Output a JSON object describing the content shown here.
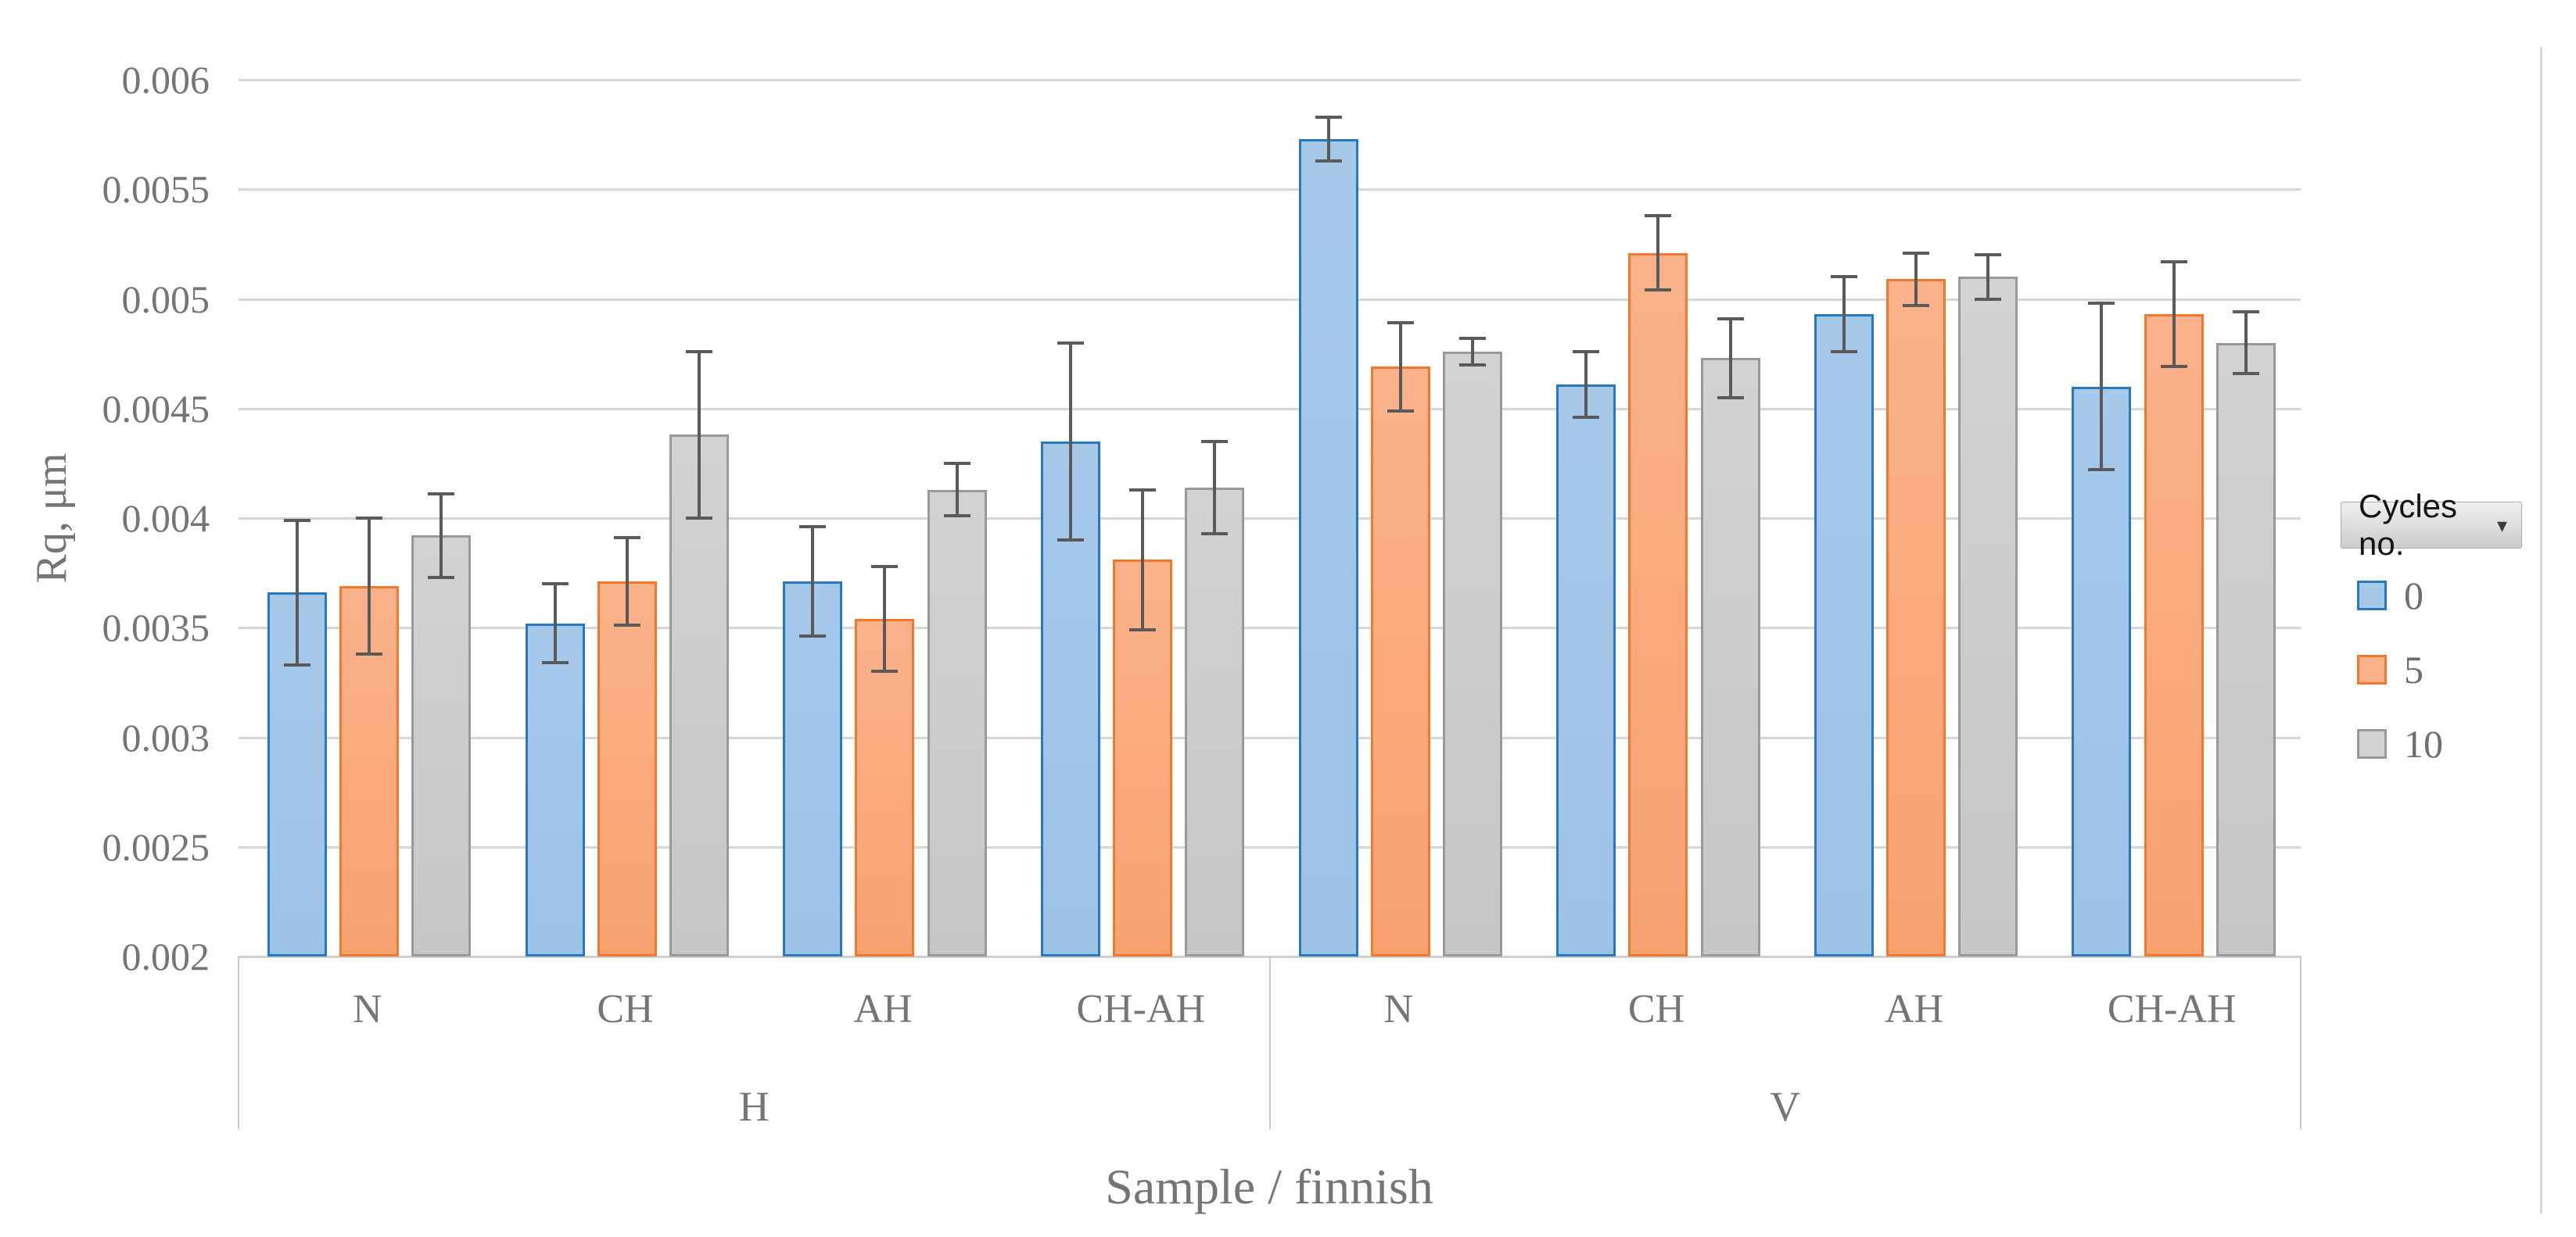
{
  "chart_data": {
    "type": "bar",
    "title": "",
    "xlabel": "Sample / finnish",
    "ylabel": "Rq, μm",
    "ylim": [
      0.002,
      0.006
    ],
    "ytick_interval": 0.0005,
    "ytick_labels": [
      "0.002",
      "0.0025",
      "0.003",
      "0.0035",
      "0.004",
      "0.0045",
      "0.005",
      "0.0055",
      "0.006"
    ],
    "grid": true,
    "legend_position": "right",
    "legend_field_button": "Cycles no.",
    "categories": [
      "N",
      "CH",
      "AH",
      "CH-AH",
      "N",
      "CH",
      "AH",
      "CH-AH"
    ],
    "category_groups": [
      {
        "label": "H",
        "span": 4
      },
      {
        "label": "V",
        "span": 4
      }
    ],
    "series": [
      {
        "name": "0",
        "fill": "#A6C9EA",
        "fill_bottom": "#9CC2E6",
        "border": "#2878C0",
        "values": [
          0.00366,
          0.00352,
          0.00371,
          0.00435,
          0.00573,
          0.00461,
          0.00493,
          0.0046
        ],
        "errors": [
          0.00033,
          0.00018,
          0.00025,
          0.00045,
          0.0001,
          0.00015,
          0.00017,
          0.00038
        ]
      },
      {
        "name": "5",
        "fill": "#FBB28B",
        "fill_bottom": "#F8A271",
        "border": "#F0792E",
        "values": [
          0.00369,
          0.00371,
          0.00354,
          0.00381,
          0.00469,
          0.00521,
          0.00509,
          0.00493
        ],
        "errors": [
          0.00031,
          0.0002,
          0.00024,
          0.00032,
          0.0002,
          0.00017,
          0.00012,
          0.00024
        ]
      },
      {
        "name": "10",
        "fill": "#D2D2D2",
        "fill_bottom": "#C6C6C6",
        "border": "#999999",
        "values": [
          0.00392,
          0.00438,
          0.00413,
          0.00414,
          0.00476,
          0.00473,
          0.0051,
          0.0048
        ],
        "errors": [
          0.00019,
          0.00038,
          0.00012,
          0.00021,
          6e-05,
          0.00018,
          0.0001,
          0.00014
        ]
      }
    ],
    "error_bar_color": "#5A5A5A",
    "gridline_color": "#D6D6D6",
    "text_color": "#757575"
  }
}
